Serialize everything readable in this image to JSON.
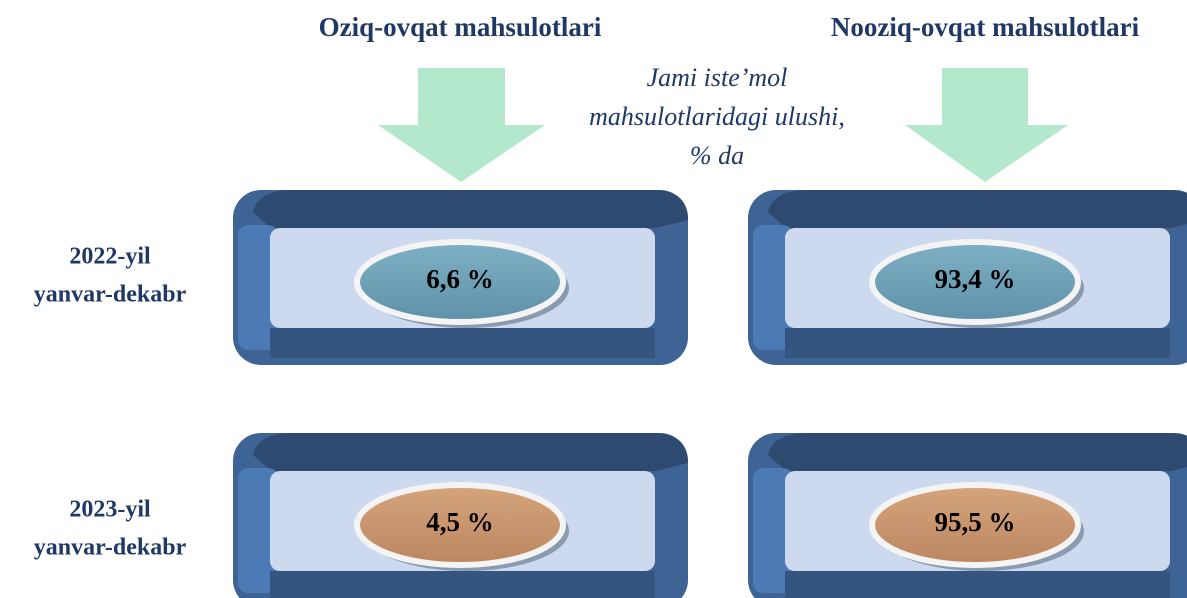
{
  "columns": [
    "Oziq-ovqat mahsulotlari",
    "Nooziq-ovqat mahsulotlari"
  ],
  "note": [
    "Jami iste’mol",
    "mahsulotlaridagi ulushi,",
    "% da"
  ],
  "rows": [
    {
      "label": [
        "2022-yil",
        "yanvar-dekabr"
      ],
      "cells": [
        "6,6 %",
        "93,4 %"
      ]
    },
    {
      "label": [
        "2023-yil",
        "yanvar-dekabr"
      ],
      "cells": [
        "4,5 %",
        "95,5 %"
      ]
    }
  ]
}
